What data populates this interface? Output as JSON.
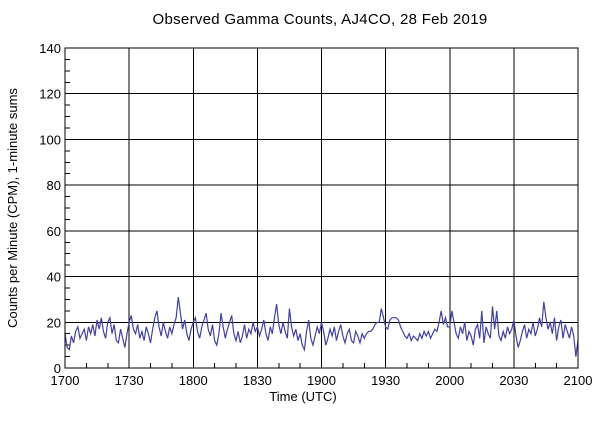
{
  "page": {
    "background": "#ffffff"
  },
  "chart_data": {
    "type": "line",
    "title": "Observed Gamma Counts, AJ4CO, 28 Feb 2019",
    "xlabel": "Time (UTC)",
    "ylabel": "Counts per Minute (CPM), 1-minute sums",
    "x_tick_labels": [
      "1700",
      "1730",
      "1800",
      "1830",
      "1900",
      "1930",
      "2000",
      "2030",
      "2100"
    ],
    "x_major_step_minutes": 30,
    "x_minor_step_minutes": 10,
    "xlim_minutes": [
      0,
      240
    ],
    "y_ticks": [
      0,
      20,
      40,
      60,
      80,
      100,
      120,
      140
    ],
    "y_minor_step": 5,
    "ylim": [
      0,
      140
    ],
    "grid": true,
    "legend": false,
    "axis_color": "#000000",
    "line_color": "#4141a5",
    "series": [
      {
        "name": "Gamma counts, 1-minute sums (CPM)",
        "start_time": "1700",
        "interval_minutes": 1,
        "values": [
          15,
          9,
          8,
          14,
          11,
          16,
          18,
          13,
          15,
          17,
          12,
          18,
          15,
          19,
          14,
          21,
          17,
          22,
          16,
          13,
          20,
          22,
          15,
          19,
          12,
          11,
          17,
          13,
          9,
          15,
          20,
          23,
          17,
          15,
          19,
          13,
          16,
          12,
          18,
          15,
          11,
          17,
          22,
          25,
          18,
          14,
          20,
          16,
          13,
          18,
          15,
          19,
          22,
          31,
          24,
          17,
          21,
          15,
          12,
          17,
          20,
          22,
          16,
          13,
          18,
          21,
          24,
          17,
          14,
          19,
          12,
          10,
          15,
          24,
          18,
          13,
          17,
          20,
          23,
          15,
          12,
          16,
          11,
          14,
          19,
          13,
          17,
          15,
          20,
          16,
          18,
          14,
          17,
          21,
          15,
          12,
          18,
          15,
          22,
          28,
          19,
          15,
          20,
          16,
          13,
          26,
          18,
          14,
          17,
          12,
          15,
          10,
          8,
          16,
          21,
          13,
          10,
          14,
          18,
          15,
          20,
          16,
          10,
          13,
          17,
          14,
          18,
          12,
          16,
          19,
          14,
          11,
          15,
          17,
          12,
          11,
          16,
          14,
          11,
          15,
          13,
          15,
          16,
          16,
          17,
          19,
          20,
          20,
          26,
          22,
          18,
          17,
          21,
          22,
          22,
          22,
          21,
          18,
          16,
          14,
          13,
          15,
          12,
          14,
          13,
          12,
          15,
          13,
          16,
          14,
          16,
          13,
          15,
          17,
          16,
          20,
          25,
          19,
          22,
          18,
          18,
          25,
          20,
          15,
          13,
          18,
          15,
          20,
          12,
          16,
          14,
          10,
          17,
          19,
          13,
          25,
          11,
          18,
          15,
          13,
          27,
          17,
          25,
          14,
          12,
          16,
          13,
          18,
          15,
          17,
          21,
          14,
          9,
          12,
          16,
          19,
          13,
          17,
          15,
          20,
          14,
          17,
          22,
          18,
          29,
          22,
          17,
          20,
          15,
          22,
          12,
          18,
          21,
          13,
          19,
          16,
          13,
          18,
          14,
          5,
          12
        ]
      }
    ]
  }
}
